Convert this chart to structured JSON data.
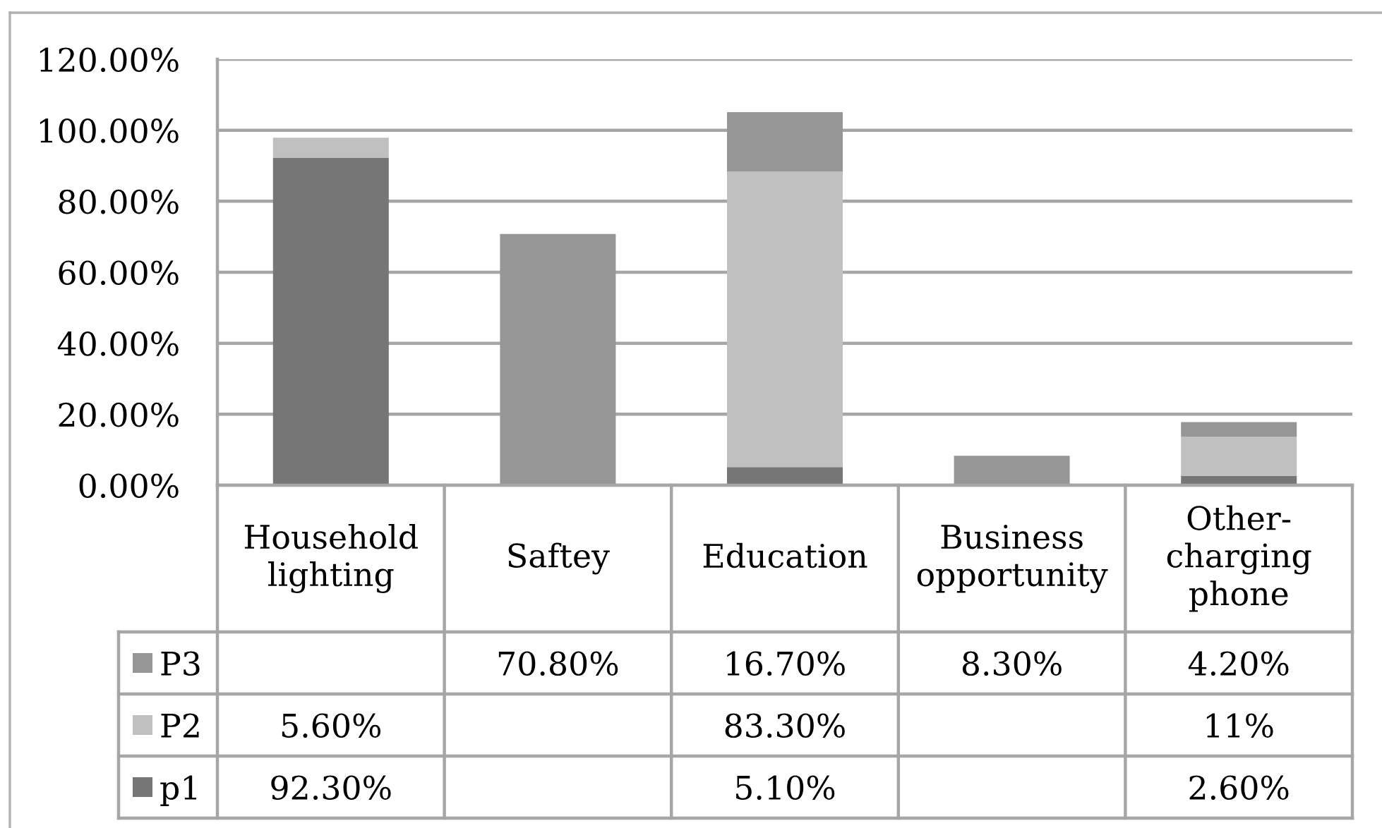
{
  "chart_data": {
    "type": "bar",
    "stacked": true,
    "categories": [
      "Household lighting",
      "Saftey",
      "Education",
      "Business opportunity",
      "Other-charging phone"
    ],
    "series": [
      {
        "name": "p1",
        "color": "#767676",
        "values": [
          92.3,
          null,
          5.1,
          null,
          2.6
        ],
        "value_labels": [
          "92.30%",
          null,
          "5.10%",
          null,
          "2.60%"
        ]
      },
      {
        "name": "P2",
        "color": "#c0c0c0",
        "values": [
          5.6,
          null,
          83.3,
          null,
          11
        ],
        "value_labels": [
          "5.60%",
          null,
          "83.30%",
          null,
          "11%"
        ]
      },
      {
        "name": "P3",
        "color": "#969696",
        "values": [
          null,
          70.8,
          16.7,
          8.3,
          4.2
        ],
        "value_labels": [
          null,
          "70.80%",
          "16.70%",
          "8.30%",
          "4.20%"
        ]
      }
    ],
    "ylim": [
      0,
      120
    ],
    "yticks": [
      {
        "value": 0,
        "label": "0.00%"
      },
      {
        "value": 20,
        "label": "20.00%"
      },
      {
        "value": 40,
        "label": "40.00%"
      },
      {
        "value": 60,
        "label": "60.00%"
      },
      {
        "value": 80,
        "label": "80.00%"
      },
      {
        "value": 100,
        "label": "100.00%"
      },
      {
        "value": 120,
        "label": "120.00%"
      }
    ],
    "grid": "y",
    "legend": "bottom"
  }
}
